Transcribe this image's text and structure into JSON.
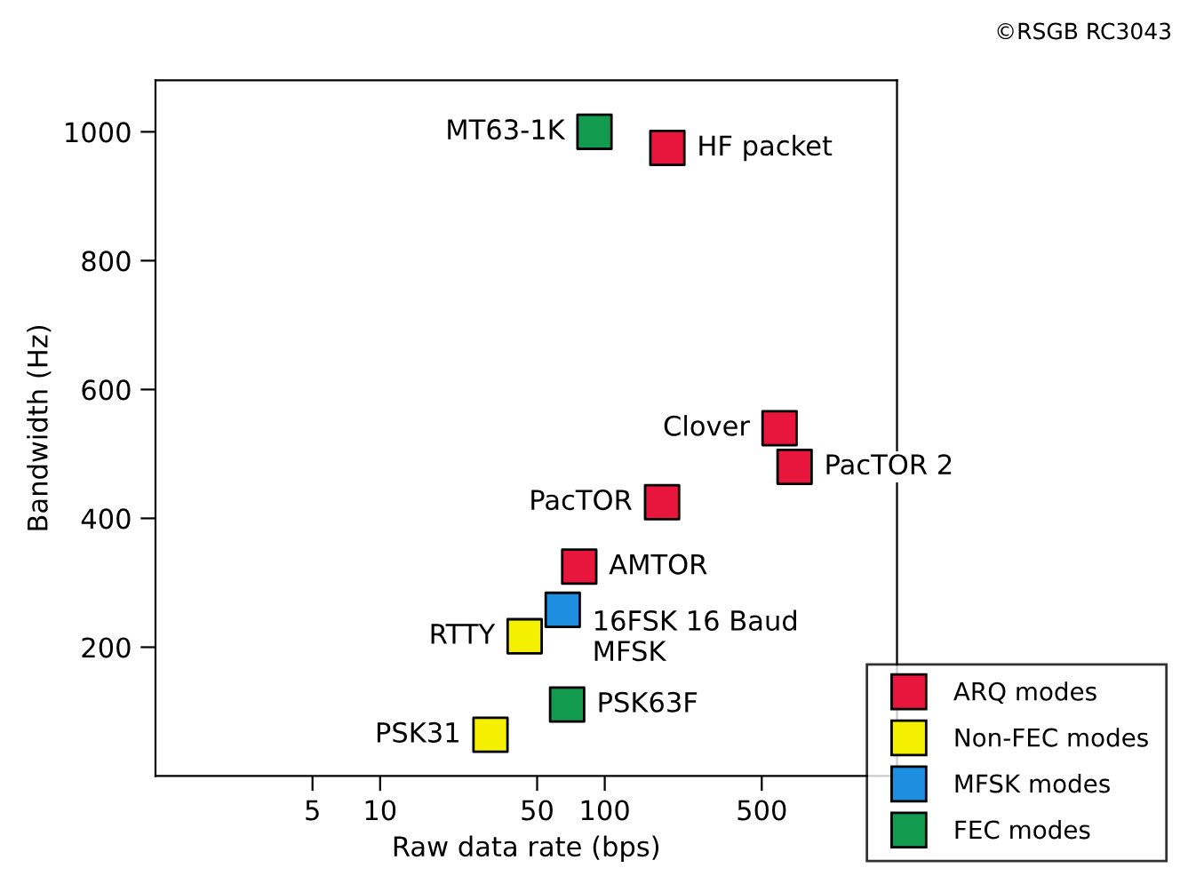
{
  "chart_data": {
    "type": "scatter",
    "xlabel": "Raw data rate (bps)",
    "ylabel": "Bandwidth (Hz)",
    "log": "x",
    "xlim": [
      1,
      2000
    ],
    "xticks": [
      5,
      10,
      50,
      100,
      500
    ],
    "ylim": [
      0,
      1080
    ],
    "yticks": [
      200,
      400,
      600,
      800,
      1000
    ],
    "grid": false,
    "marker": "square",
    "legend": "bottom right",
    "series": [
      {
        "name": "ARQ modes",
        "color": "#e8163c",
        "x": [
          190,
          600,
          700,
          180,
          77
        ],
        "values": [
          975,
          540,
          480,
          425,
          325
        ]
      },
      {
        "name": "Non-FEC modes",
        "color": "#f5f000",
        "x": [
          44,
          31
        ],
        "values": [
          217,
          64
        ]
      },
      {
        "name": "MFSK modes",
        "color": "#1e8ee0",
        "x": [
          65
        ],
        "values": [
          258
        ]
      },
      {
        "name": "FEC modes",
        "color": "#129a4e",
        "x": [
          90,
          68
        ],
        "values": [
          1000,
          111
        ]
      }
    ],
    "annotations": [
      {
        "text": "HF packet",
        "x": 190,
        "y": 975
      },
      {
        "text": "Clover",
        "x": 600,
        "y": 540
      },
      {
        "text": "PacTOR 2",
        "x": 700,
        "y": 480
      },
      {
        "text": "PacTOR",
        "x": 180,
        "y": 425
      },
      {
        "text": "AMTOR",
        "x": 77,
        "y": 325
      },
      {
        "text": "RTTY",
        "x": 44,
        "y": 217
      },
      {
        "text": "PSK31",
        "x": 31,
        "y": 64
      },
      {
        "text": "16FSK 16 Baud\nMFSK",
        "x": 65,
        "y": 258
      },
      {
        "text": "MT63-1K",
        "x": 90,
        "y": 1000
      },
      {
        "text": "PSK63F",
        "x": 68,
        "y": 111
      },
      "©RSGB RC3043"
    ]
  }
}
